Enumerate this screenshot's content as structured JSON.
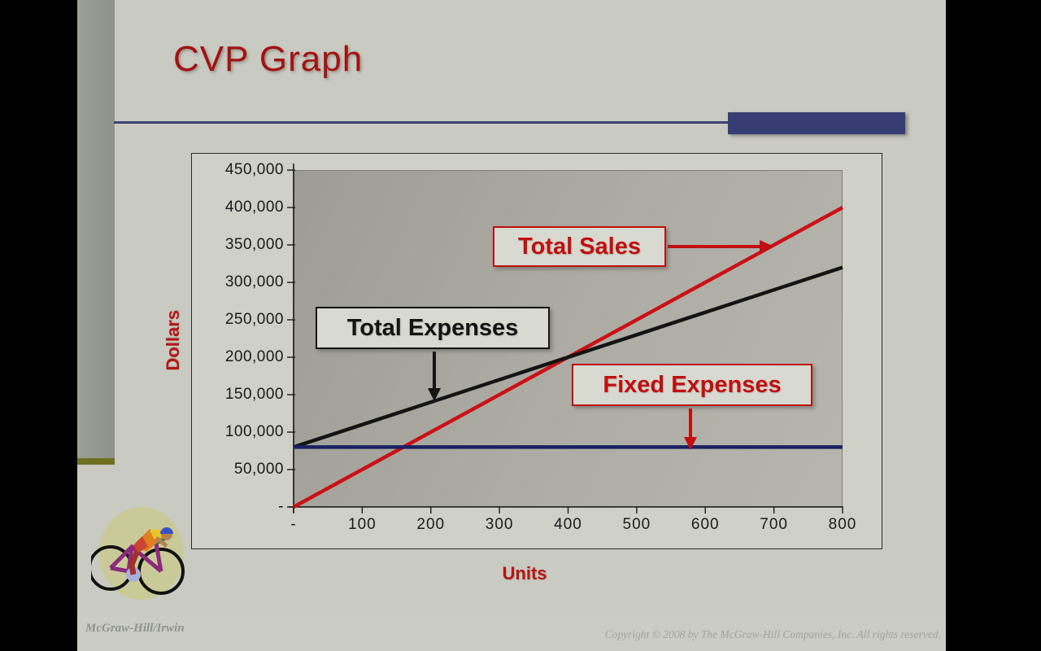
{
  "slide": {
    "title": "CVP Graph",
    "footer_left": "McGraw-Hill/Irwin",
    "footer_right": "Copyright © 2008 by The McGraw-Hill Companies, Inc. All rights reserved.",
    "accent_navy": "#373d73",
    "accent_red": "#a41212",
    "clipart": "cyclist"
  },
  "chart_data": {
    "type": "line",
    "title": "",
    "xlabel": "Units",
    "ylabel": "Dollars",
    "xlim": [
      0,
      800
    ],
    "ylim": [
      0,
      450000
    ],
    "grid": false,
    "legend": "none",
    "x_tick_labels": [
      "-",
      "100",
      "200",
      "300",
      "400",
      "500",
      "600",
      "700",
      "800"
    ],
    "y_tick_labels": [
      "450,000",
      "400,000",
      "350,000",
      "300,000",
      "250,000",
      "200,000",
      "150,000",
      "100,000",
      "50,000",
      "-"
    ],
    "x": [
      0,
      800
    ],
    "series": [
      {
        "name": "Total Sales",
        "color": "#cc1016",
        "values": [
          0,
          400000
        ]
      },
      {
        "name": "Total Expenses",
        "color": "#141414",
        "values": [
          80000,
          320000
        ]
      },
      {
        "name": "Fixed Expenses",
        "color": "#1a2160",
        "values": [
          80000,
          80000
        ]
      }
    ],
    "annotations": [
      {
        "label": "Total Sales",
        "color": "#c01010",
        "arrow": "right"
      },
      {
        "label": "Total Expenses",
        "color": "#141414",
        "arrow": "down"
      },
      {
        "label": "Fixed Expenses",
        "color": "#c01010",
        "arrow": "down"
      }
    ]
  }
}
